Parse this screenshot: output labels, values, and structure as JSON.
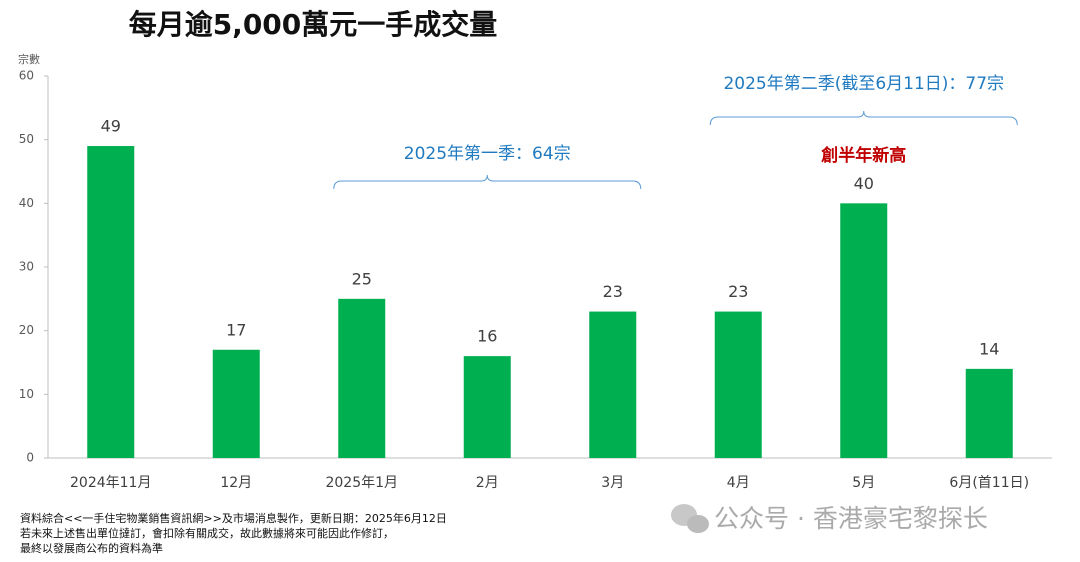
{
  "chart_data": {
    "type": "bar",
    "title": "每月逾5,000萬元一手成交量",
    "y_label": "宗數",
    "categories": [
      "2024年11月",
      "12月",
      "2025年1月",
      "2月",
      "3月",
      "4月",
      "5月",
      "6月(首11日)"
    ],
    "values": [
      49,
      17,
      25,
      16,
      23,
      23,
      40,
      14
    ],
    "color": "#00b050",
    "ylim": [
      0,
      60
    ],
    "yticks": [
      0,
      10,
      20,
      30,
      40,
      50,
      60
    ],
    "grid": false,
    "annotations": [
      "2025年第一季：64宗",
      "2025年第二季(截至6月11日)：77宗",
      "創半年新高"
    ]
  },
  "footer": {
    "source": [
      "資料綜合<<一手住宅物業銷售資訊網>>及市場消息製作，更新日期：2025年6月12日",
      "若未來上述售出單位撻訂，會扣除有關成交，故此數據將來可能因此作修訂，",
      "最終以發展商公布的資料為準"
    ],
    "watermark": "公众号 · 香港豪宅黎探长"
  }
}
